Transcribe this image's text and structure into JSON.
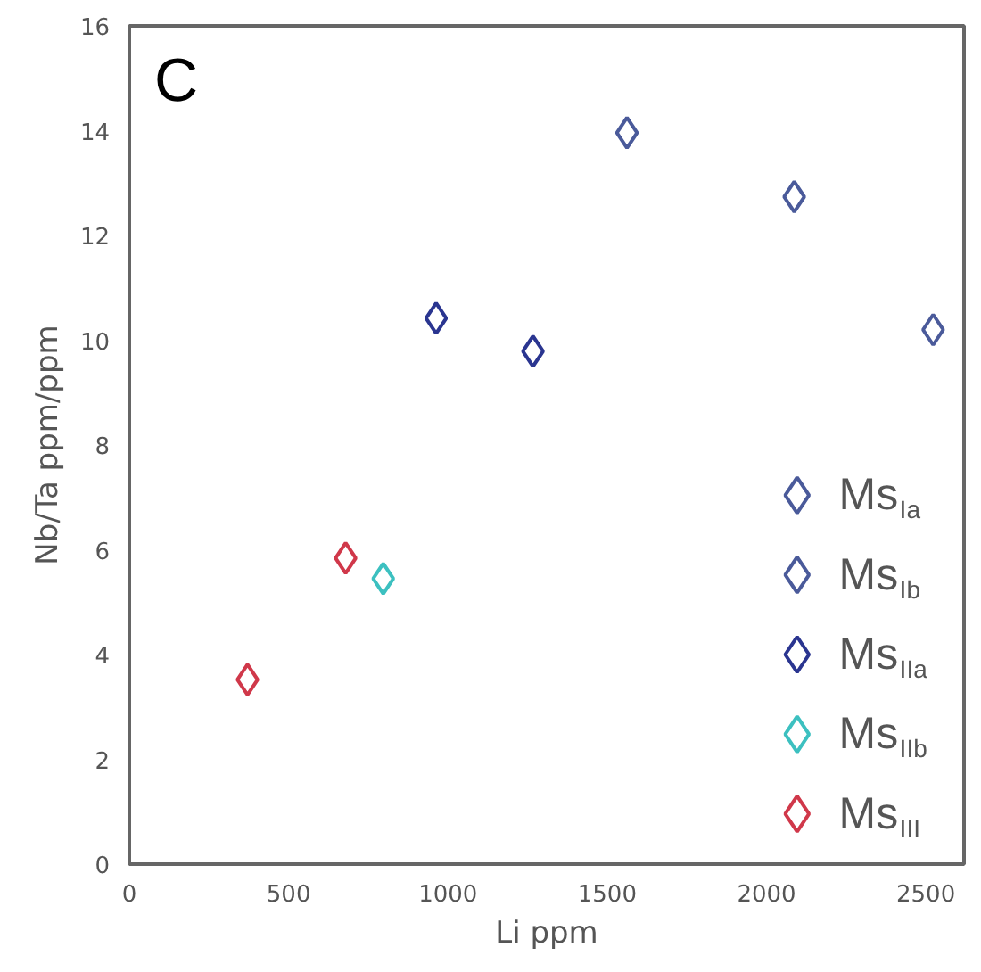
{
  "chart_data": {
    "type": "scatter",
    "title": "C",
    "xlabel": "Li ppm",
    "ylabel": "Nb/Ta ppm/ppm",
    "xlim": [
      0,
      2620
    ],
    "ylim": [
      0,
      16
    ],
    "xticks": [
      0,
      500,
      1000,
      1500,
      2000,
      2500
    ],
    "yticks": [
      0,
      2,
      4,
      6,
      8,
      10,
      12,
      14,
      16
    ],
    "grid": false,
    "legend": "bottom right",
    "marker": "diamond",
    "series": [
      {
        "name": "Ms$_{Ia}$",
        "color": "#4a5a9a",
        "x": [
          1562,
          2087
        ],
        "values": [
          13.96,
          12.74
        ]
      },
      {
        "name": "Ms$_{Ib}$",
        "color": "#4a5a9a",
        "x": [
          2523
        ],
        "values": [
          10.2
        ]
      },
      {
        "name": "Ms$_{IIa}$",
        "color": "#2a3590",
        "x": [
          963,
          1267
        ],
        "values": [
          10.42,
          9.79
        ]
      },
      {
        "name": "Ms$_{IIb}$",
        "color": "#3cc0c0",
        "x": [
          797
        ],
        "values": [
          5.45
        ]
      },
      {
        "name": "Ms$_{III}$",
        "color": "#d0384a",
        "x": [
          679,
          371
        ],
        "values": [
          5.84,
          3.52
        ]
      }
    ]
  }
}
